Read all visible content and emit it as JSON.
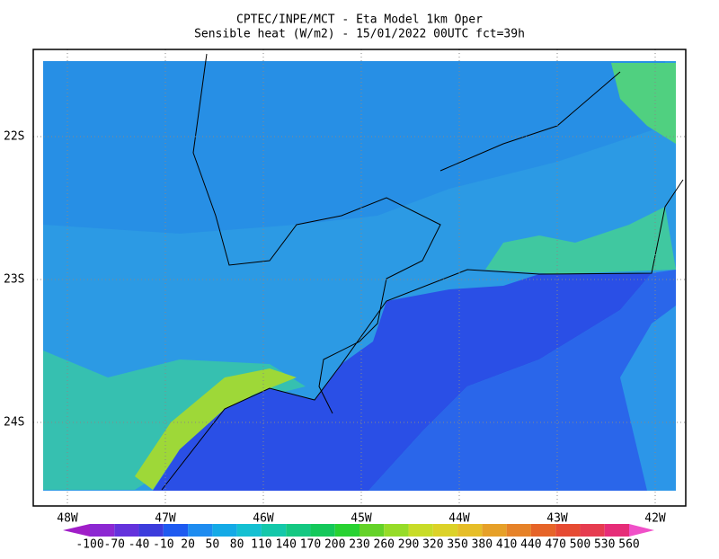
{
  "header": {
    "title": "CPTEC/INPE/MCT -  Eta Model 1km Oper",
    "subtitle": "Sensible heat (W/m2) - 15/01/2022 00UTC fct=39h"
  },
  "map": {
    "lat_labels": [
      "22S",
      "23S",
      "24S"
    ],
    "lon_labels": [
      "48W",
      "47W",
      "46W",
      "45W",
      "44W",
      "43W",
      "42W"
    ]
  },
  "colorbar": {
    "ticks": [
      -100,
      -70,
      -40,
      -10,
      20,
      50,
      80,
      110,
      140,
      170,
      200,
      230,
      260,
      290,
      320,
      350,
      380,
      410,
      440,
      470,
      500,
      530,
      560
    ],
    "colors": [
      "#a01ec8",
      "#8c28d2",
      "#6432dc",
      "#3c3cdc",
      "#1e5af0",
      "#1e8cf0",
      "#14aae6",
      "#14c0d2",
      "#14c8aa",
      "#14c882",
      "#14c85a",
      "#28d232",
      "#64d228",
      "#96dc28",
      "#c8dc28",
      "#dcd228",
      "#e6be28",
      "#e6a028",
      "#e68228",
      "#e66428",
      "#e64b32",
      "#e63c50",
      "#e62d78",
      "#f050c8"
    ]
  }
}
